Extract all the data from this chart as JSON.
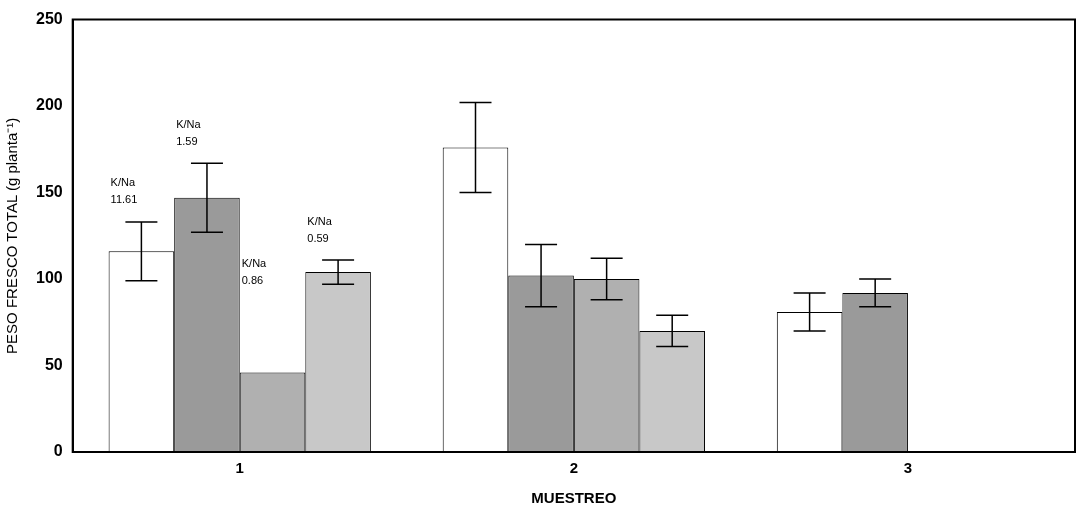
{
  "chart_data": {
    "type": "bar",
    "xlabel": "MUESTREO",
    "ylabel": "PESO FRESCO TOTAL (g planta⁻¹)",
    "categories": [
      "1",
      "2",
      "3"
    ],
    "series": [
      {
        "color": "#ffffff",
        "values": [
          116,
          176,
          81
        ],
        "errors": [
          17,
          26,
          11
        ]
      },
      {
        "color": "#9a9a9a",
        "values": [
          147,
          102,
          92
        ],
        "errors": [
          20,
          18,
          8
        ]
      },
      {
        "color": "#b0b0b0",
        "values": [
          46,
          100,
          null
        ],
        "errors": [
          null,
          12,
          null
        ]
      },
      {
        "color": "#c8c8c8",
        "values": [
          104,
          70,
          null
        ],
        "errors": [
          7,
          9,
          null
        ]
      }
    ],
    "ylim": [
      0,
      250
    ],
    "yticks": [
      0,
      50,
      100,
      150,
      200,
      250
    ],
    "grid": false,
    "legend": false,
    "annotations": [
      "K/Na\n11.61",
      "K/Na\n1.59",
      "K/Na\n0.86",
      "K/Na\n0.59"
    ]
  }
}
